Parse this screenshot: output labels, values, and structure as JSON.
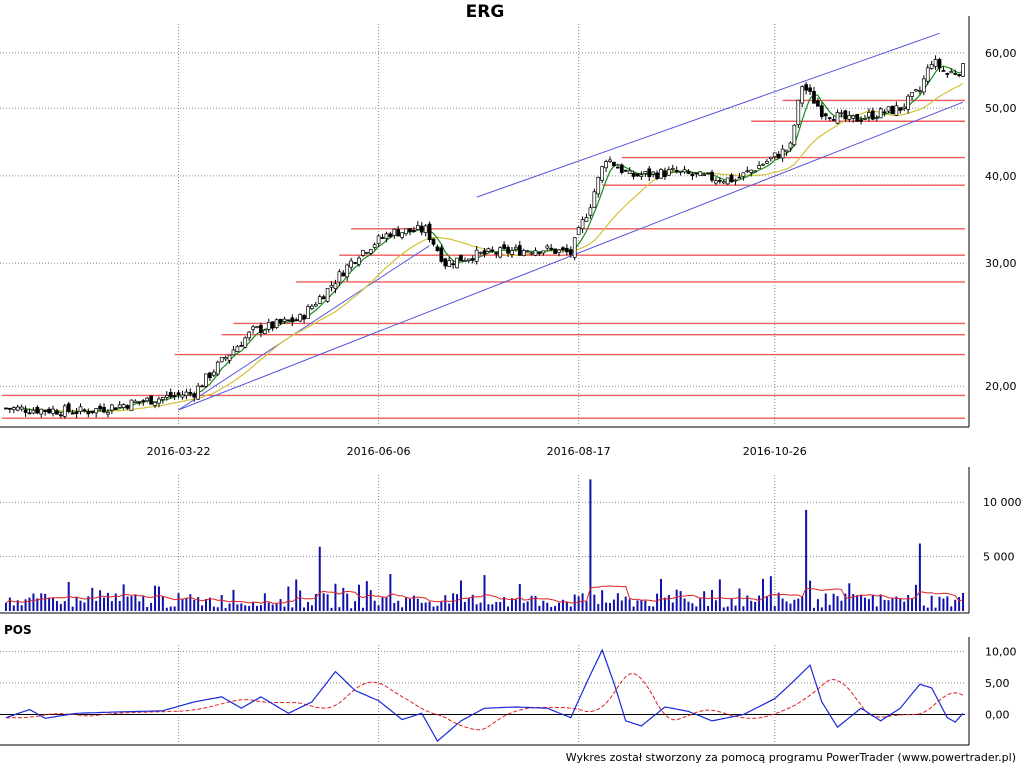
{
  "title": "ERG",
  "footer": "Wykres został stworzony za pomocą programu PowerTrader (www.powertrader.pl)",
  "colors": {
    "candle_up": "#ffffff",
    "candle_down": "#000000",
    "ma_short": "#1a8a1a",
    "ma_long": "#d4c23a",
    "support_lines": "#f05a5a",
    "trend_lines": "#5555dd",
    "volume_bars": "#1010aa",
    "volume_avg": "#e02020",
    "osc_line": "#1a2ad8",
    "osc_signal": "#e02020",
    "grid": "#888888"
  },
  "chart_data": [
    {
      "type": "candlestick",
      "panel": "price",
      "title": "ERG",
      "x_ticks": [
        "2016-03-22",
        "2016-06-06",
        "2016-08-17",
        "2016-10-26"
      ],
      "y_scale": "log",
      "y_ticks": [
        "20,00",
        "30,00",
        "40,00",
        "50,00",
        "60,00"
      ],
      "ylim": [
        17.6,
        66
      ],
      "grid": true,
      "anchors": [
        [
          0,
          18.6
        ],
        [
          20,
          18.4
        ],
        [
          34,
          19.0
        ],
        [
          48,
          19.6
        ],
        [
          56,
          22.0
        ],
        [
          63,
          24.0
        ],
        [
          75,
          25.0
        ],
        [
          82,
          27.5
        ],
        [
          90,
          31.0
        ],
        [
          98,
          33.2
        ],
        [
          107,
          33.5
        ],
        [
          112,
          30.0
        ],
        [
          119,
          30.8
        ],
        [
          136,
          31.5
        ],
        [
          144,
          31.0
        ],
        [
          149,
          36.5
        ],
        [
          153,
          42.5
        ],
        [
          159,
          40.0
        ],
        [
          170,
          40.5
        ],
        [
          178,
          39.8
        ],
        [
          186,
          39.5
        ],
        [
          194,
          42.0
        ],
        [
          200,
          44.0
        ],
        [
          203,
          54.0
        ],
        [
          208,
          49.5
        ],
        [
          215,
          48.0
        ],
        [
          228,
          50.0
        ],
        [
          233,
          53.0
        ],
        [
          236,
          58.5
        ],
        [
          240,
          56.0
        ],
        [
          244,
          57.0
        ]
      ],
      "horizontal_levels": [
        {
          "value": 18.0,
          "from_day": 0
        },
        {
          "value": 19.4,
          "from_day": 0
        },
        {
          "value": 22.2,
          "from_day": 44
        },
        {
          "value": 23.7,
          "from_day": 56
        },
        {
          "value": 24.6,
          "from_day": 59
        },
        {
          "value": 28.2,
          "from_day": 75
        },
        {
          "value": 30.8,
          "from_day": 86
        },
        {
          "value": 33.6,
          "from_day": 89
        },
        {
          "value": 38.8,
          "from_day": 153
        },
        {
          "value": 42.5,
          "from_day": 158
        },
        {
          "value": 47.9,
          "from_day": 191
        },
        {
          "value": 51.3,
          "from_day": 199
        }
      ],
      "trend_lines": [
        {
          "from": [
            44,
            18.5
          ],
          "to": [
            108,
            31.8
          ]
        },
        {
          "from": [
            44,
            18.5
          ],
          "to": [
            244,
            51.0
          ]
        },
        {
          "from": [
            120,
            37.3
          ],
          "to": [
            238,
            64.0
          ]
        }
      ]
    },
    {
      "type": "bar",
      "panel": "volume",
      "y_ticks": [
        "5 000",
        "10 000"
      ],
      "ylim": [
        0,
        12500
      ],
      "spikes": [
        [
          80,
          5900
        ],
        [
          149,
          12100
        ],
        [
          204,
          9300
        ],
        [
          233,
          6200
        ],
        [
          98,
          3400
        ],
        [
          122,
          3300
        ],
        [
          195,
          3200
        ],
        [
          182,
          2900
        ]
      ]
    },
    {
      "type": "line",
      "panel": "oscillator",
      "title": "POS",
      "y_ticks": [
        "0,00",
        "5,00",
        "10,00"
      ],
      "ylim": [
        -4.5,
        11
      ],
      "anchors": [
        [
          0,
          -0.5
        ],
        [
          6,
          0.8
        ],
        [
          10,
          -0.6
        ],
        [
          18,
          0.2
        ],
        [
          28,
          0.4
        ],
        [
          40,
          0.6
        ],
        [
          48,
          2.0
        ],
        [
          55,
          2.8
        ],
        [
          60,
          1.0
        ],
        [
          65,
          2.8
        ],
        [
          72,
          0.2
        ],
        [
          78,
          2.0
        ],
        [
          84,
          6.8
        ],
        [
          89,
          3.8
        ],
        [
          95,
          2.2
        ],
        [
          101,
          -0.8
        ],
        [
          106,
          0.2
        ],
        [
          110,
          -4.2
        ],
        [
          116,
          -1.0
        ],
        [
          122,
          1.0
        ],
        [
          130,
          1.2
        ],
        [
          138,
          1.0
        ],
        [
          144,
          -0.5
        ],
        [
          148,
          5.0
        ],
        [
          152,
          10.2
        ],
        [
          155,
          5.0
        ],
        [
          158,
          -1.0
        ],
        [
          162,
          -1.8
        ],
        [
          168,
          1.2
        ],
        [
          174,
          0.5
        ],
        [
          180,
          -1.0
        ],
        [
          188,
          0.0
        ],
        [
          196,
          2.5
        ],
        [
          200,
          4.8
        ],
        [
          205,
          7.8
        ],
        [
          208,
          2.0
        ],
        [
          212,
          -2.0
        ],
        [
          218,
          1.0
        ],
        [
          223,
          -1.0
        ],
        [
          228,
          1.0
        ],
        [
          233,
          4.8
        ],
        [
          236,
          4.2
        ],
        [
          240,
          -0.5
        ],
        [
          242,
          -1.2
        ],
        [
          244,
          0.2
        ]
      ]
    }
  ]
}
